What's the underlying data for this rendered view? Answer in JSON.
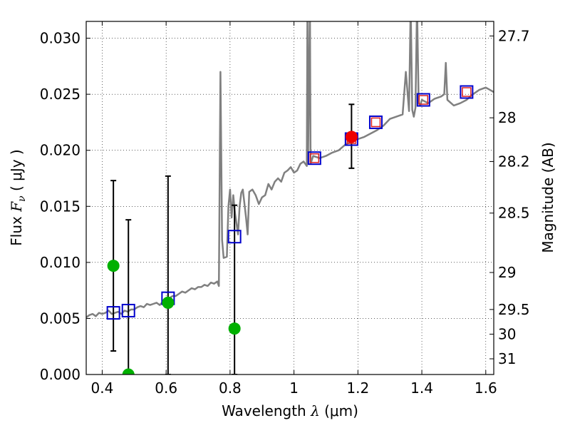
{
  "chart_data": {
    "type": "scatter",
    "title": "",
    "xlabel": {
      "prefix": "Wavelength  ",
      "symbol": "λ",
      "units": " (μm)"
    },
    "ylabel": {
      "prefix": "Flux  ",
      "symbol": "F",
      "sub": "ν",
      "units": "  ( μJy )"
    },
    "ylabel_right": "Magnitude (AB)",
    "xlim": [
      0.35,
      1.625
    ],
    "ylim": [
      0.0,
      0.0315
    ],
    "grid": true,
    "x_ticks": [
      0.4,
      0.6,
      0.8,
      1.0,
      1.2,
      1.4,
      1.6
    ],
    "x_tick_labels": [
      "0.4",
      "0.6",
      "0.8",
      "1",
      "1.2",
      "1.4",
      "1.6"
    ],
    "y_ticks": [
      0.0,
      0.005,
      0.01,
      0.015,
      0.02,
      0.025,
      0.03
    ],
    "y_tick_labels": [
      "0.000",
      "0.005",
      "0.010",
      "0.015",
      "0.020",
      "0.025",
      "0.030"
    ],
    "right_ticks": [
      {
        "label": "27.7",
        "flux": 0.0302
      },
      {
        "label": "28",
        "flux": 0.0229
      },
      {
        "label": "28.2",
        "flux": 0.019
      },
      {
        "label": "28.5",
        "flux": 0.0144
      },
      {
        "label": "29",
        "flux": 0.0091
      },
      {
        "label": "29.5",
        "flux": 0.0058
      },
      {
        "label": "30",
        "flux": 0.0036
      },
      {
        "label": "31",
        "flux": 0.0014
      }
    ],
    "series": [
      {
        "name": "model_spectrum",
        "kind": "line",
        "color": "#808080",
        "x": [
          0.35,
          0.36,
          0.37,
          0.38,
          0.39,
          0.4,
          0.41,
          0.42,
          0.43,
          0.44,
          0.45,
          0.46,
          0.47,
          0.48,
          0.49,
          0.5,
          0.51,
          0.52,
          0.53,
          0.54,
          0.55,
          0.56,
          0.57,
          0.58,
          0.59,
          0.6,
          0.61,
          0.62,
          0.63,
          0.64,
          0.65,
          0.66,
          0.67,
          0.68,
          0.69,
          0.7,
          0.71,
          0.72,
          0.73,
          0.74,
          0.75,
          0.76,
          0.765,
          0.77,
          0.775,
          0.78,
          0.79,
          0.795,
          0.8,
          0.805,
          0.81,
          0.815,
          0.82,
          0.825,
          0.83,
          0.835,
          0.84,
          0.85,
          0.855,
          0.86,
          0.87,
          0.88,
          0.89,
          0.9,
          0.91,
          0.92,
          0.93,
          0.94,
          0.95,
          0.96,
          0.97,
          0.98,
          0.99,
          1.0,
          1.01,
          1.02,
          1.03,
          1.04,
          1.042,
          1.044,
          1.05,
          1.052,
          1.06,
          1.08,
          1.1,
          1.12,
          1.14,
          1.16,
          1.18,
          1.2,
          1.22,
          1.24,
          1.26,
          1.28,
          1.3,
          1.32,
          1.34,
          1.35,
          1.36,
          1.365,
          1.37,
          1.375,
          1.38,
          1.385,
          1.39,
          1.395,
          1.4,
          1.42,
          1.44,
          1.46,
          1.47,
          1.475,
          1.48,
          1.5,
          1.52,
          1.54,
          1.56,
          1.58,
          1.6,
          1.625
        ],
        "y": [
          0.0051,
          0.0053,
          0.0054,
          0.0052,
          0.0055,
          0.0054,
          0.0055,
          0.0057,
          0.0054,
          0.0055,
          0.0056,
          0.0054,
          0.0057,
          0.0056,
          0.0058,
          0.0058,
          0.006,
          0.0061,
          0.006,
          0.0063,
          0.0062,
          0.0063,
          0.0064,
          0.0062,
          0.0065,
          0.0066,
          0.0068,
          0.007,
          0.007,
          0.0072,
          0.0074,
          0.0073,
          0.0075,
          0.0077,
          0.0076,
          0.0078,
          0.0078,
          0.008,
          0.0079,
          0.0082,
          0.0081,
          0.0083,
          0.0079,
          0.027,
          0.012,
          0.0104,
          0.0105,
          0.015,
          0.0165,
          0.014,
          0.016,
          0.0145,
          0.0135,
          0.0125,
          0.015,
          0.0162,
          0.0165,
          0.014,
          0.0125,
          0.0163,
          0.0165,
          0.016,
          0.0152,
          0.0158,
          0.016,
          0.017,
          0.0165,
          0.0172,
          0.0175,
          0.0172,
          0.018,
          0.0182,
          0.0185,
          0.018,
          0.0182,
          0.0188,
          0.019,
          0.0186,
          0.033,
          0.0189,
          0.033,
          0.0188,
          0.0195,
          0.0193,
          0.0195,
          0.0198,
          0.02,
          0.0205,
          0.0208,
          0.021,
          0.0212,
          0.0215,
          0.0218,
          0.0222,
          0.0228,
          0.023,
          0.0232,
          0.027,
          0.0235,
          0.033,
          0.0236,
          0.023,
          0.0238,
          0.033,
          0.0242,
          0.024,
          0.0245,
          0.0242,
          0.0246,
          0.0248,
          0.025,
          0.0278,
          0.0245,
          0.024,
          0.0242,
          0.0245,
          0.025,
          0.0254,
          0.0256,
          0.0252
        ],
        "line_width": 2.5
      },
      {
        "name": "model_photometry",
        "kind": "open_square",
        "color": "#0000cc",
        "x": [
          0.435,
          0.482,
          0.606,
          0.814,
          1.064,
          1.18,
          1.256,
          1.405,
          1.54
        ],
        "y": [
          0.0055,
          0.0057,
          0.0068,
          0.0123,
          0.0193,
          0.021,
          0.0225,
          0.0245,
          0.0252
        ]
      },
      {
        "name": "model_photometry_inner",
        "kind": "open_square_small",
        "color": "#dd2020",
        "x": [
          1.064,
          1.18,
          1.256,
          1.405,
          1.54
        ],
        "y": [
          0.0193,
          0.021,
          0.0225,
          0.0245,
          0.0252
        ]
      },
      {
        "name": "observed_optical",
        "kind": "circle",
        "color": "#00b000",
        "x": [
          0.435,
          0.482,
          0.606,
          0.814
        ],
        "y": [
          0.0097,
          0.0,
          0.0064,
          0.0041
        ]
      },
      {
        "name": "observed_ir",
        "kind": "circle",
        "color": "#ee0000",
        "x": [
          1.18
        ],
        "y": [
          0.0212
        ]
      }
    ],
    "errorbars": [
      {
        "x": 0.435,
        "low": 0.0021,
        "high": 0.0173
      },
      {
        "x": 0.482,
        "low": 0.0,
        "high": 0.0138
      },
      {
        "x": 0.606,
        "low": 0.0,
        "high": 0.0177
      },
      {
        "x": 0.814,
        "low": 0.0,
        "high": 0.0151
      },
      {
        "x": 1.18,
        "low": 0.0184,
        "high": 0.0241
      }
    ]
  }
}
